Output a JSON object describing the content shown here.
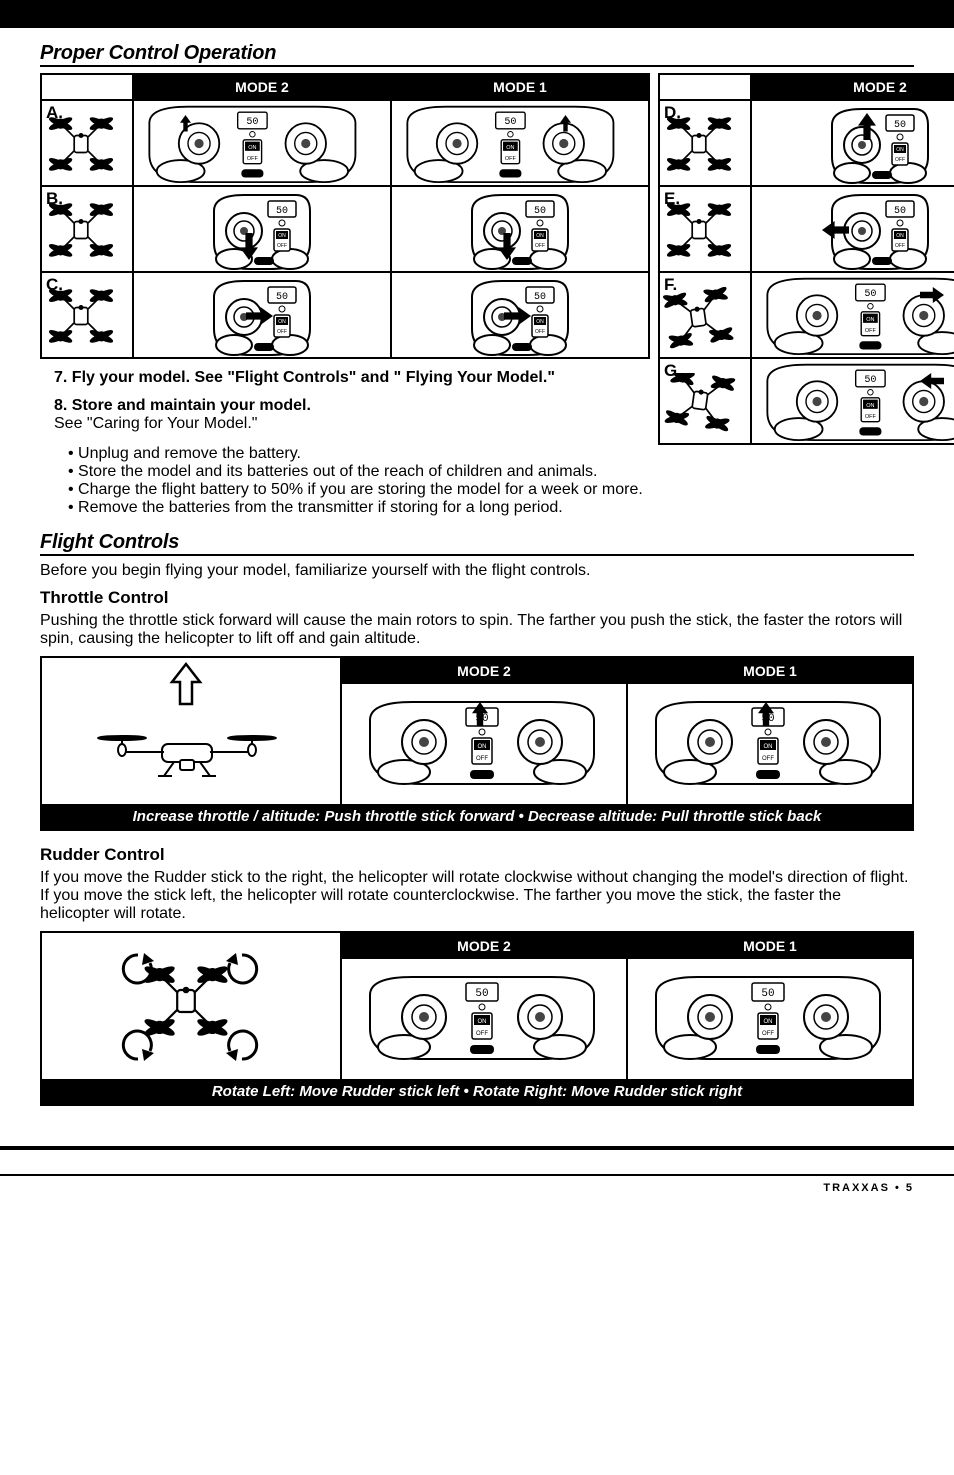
{
  "section_proper": "Proper Control Operation",
  "rows_left": [
    "A.",
    "B.",
    "C."
  ],
  "rows_right": [
    "D.",
    "E.",
    "F.",
    "G."
  ],
  "mode2": "MODE 2",
  "mode1": "MODE 1",
  "step7": "7. Fly your model. See \"Flight Controls\" and \" Flying Your Model.\"",
  "step8": "8. Store and maintain your model.",
  "step8sub": "See \"Caring for Your Model.\"",
  "bullets": [
    "Unplug and remove the battery.",
    "Store the model and its batteries out of the reach of children and animals.",
    "Charge the flight battery to 50% if you are storing the model for a week or more.",
    "Remove the batteries from the transmitter if storing for a long period."
  ],
  "section_flight": "Flight Controls",
  "flight_intro": "Before you begin flying your model, familiarize yourself with the flight controls.",
  "throttle_h": "Throttle Control",
  "throttle_p": "Pushing the throttle stick forward will cause the main rotors to spin. The farther you push the stick, the faster the rotors will spin, causing the helicopter to lift off and gain altitude.",
  "throttle_caption": "Increase throttle / altitude: Push throttle stick forward • Decrease altitude: Pull throttle stick back",
  "rudder_h": "Rudder Control",
  "rudder_p": "If you move the Rudder stick to the right, the helicopter will rotate clockwise without changing the model's direction of flight. If you move the stick left, the helicopter will rotate counterclockwise. The farther you move the stick, the faster the helicopter will rotate.",
  "rudder_caption": "Rotate Left: Move Rudder stick left  • Rotate Right: Move Rudder stick right",
  "footer": "TRAXXAS • 5",
  "lcd": "50",
  "switch_on": "ON",
  "switch_off": "OFF",
  "tx_brand": "",
  "drone_variants": {
    "left": [
      {
        "fl": 0,
        "fr": 0,
        "bl": 0,
        "br": 0
      },
      {
        "fl": -15,
        "fr": 15,
        "bl": 0,
        "br": 0
      },
      {
        "fl": 0,
        "fr": 0,
        "bl": -12,
        "br": 12
      }
    ],
    "right": [
      {
        "fl": 15,
        "fr": -15,
        "bl": 0,
        "br": 0
      },
      {
        "fl": 0,
        "fr": 0,
        "bl": 12,
        "br": -12
      },
      {
        "fl": 0,
        "fr": 0,
        "bl": 0,
        "br": 0,
        "yaw": -8
      },
      {
        "fl": 0,
        "fr": 0,
        "bl": 0,
        "br": 0,
        "yaw": 8
      }
    ]
  },
  "tx_arrows": {
    "left": [
      {
        "m2l": "up-small-center",
        "m2r": null,
        "m1l": null,
        "m1r": "up-small-center",
        "split": true
      },
      {
        "m2l": "down-big",
        "m2r": null,
        "m1l": "down-big",
        "m1r": null,
        "split": false,
        "left_lcd": "left",
        "right_lcd": "left"
      },
      {
        "m2l": "right-big",
        "m2r": null,
        "m1l": "right-big",
        "m1r": null,
        "split": false,
        "left_lcd": "left",
        "right_lcd": "left"
      }
    ],
    "right": [
      {
        "m2l": "up-big",
        "m2r": null,
        "m1l": null,
        "m1r": "up-big",
        "split": false,
        "left_lcd": "left",
        "right_lcd": "right"
      },
      {
        "m2l": "left-big",
        "m2r": null,
        "m1l": null,
        "m1r": "left-big",
        "split": false,
        "left_lcd": "left",
        "right_lcd": "right"
      },
      {
        "m2l": null,
        "m2r": "right-big",
        "m1l": null,
        "m1r": "right-big",
        "split": true
      },
      {
        "m2l": null,
        "m2r": "left-big",
        "m1l": null,
        "m1r": "left-big",
        "split": true
      }
    ]
  },
  "throttle_arrows": {
    "m2": "right-stick-up",
    "m1": "right-stick-up"
  },
  "rudder_arrows": {
    "m2": "right-stick",
    "m1": "right-stick"
  },
  "colors": {
    "bg": "#ffffff",
    "fg": "#000000"
  }
}
